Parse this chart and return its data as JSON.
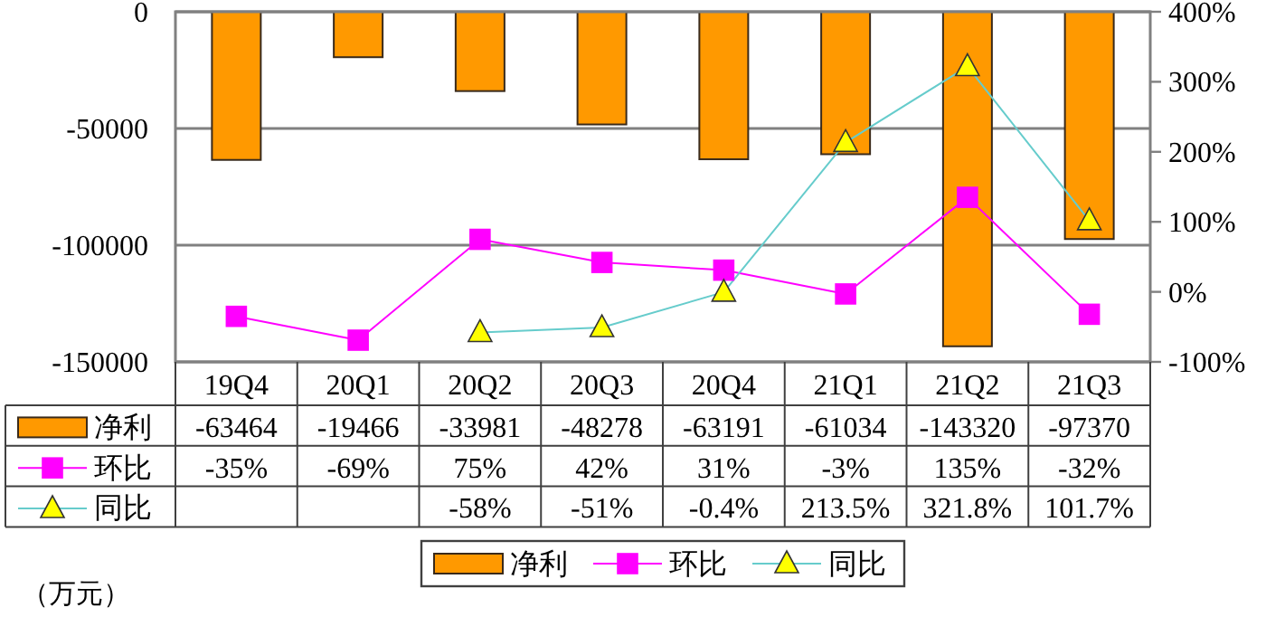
{
  "chart_data": {
    "type": "bar",
    "categories": [
      "19Q4",
      "20Q1",
      "20Q2",
      "20Q3",
      "20Q4",
      "21Q1",
      "21Q2",
      "21Q3"
    ],
    "series": [
      {
        "name": "净利",
        "color": "#ff9900",
        "values": [
          -63464,
          -19466,
          -33981,
          -48278,
          -63191,
          -61034,
          -143320,
          -97370
        ],
        "value_labels": [
          "-63464",
          "-19466",
          "-33981",
          "-48278",
          "-63191",
          "-61034",
          "-143320",
          "-97370"
        ]
      },
      {
        "name": "环比",
        "type": "line",
        "axis": "y2",
        "color": "#ff00ff",
        "marker": "square",
        "values": [
          -35,
          -69,
          75,
          42,
          31,
          -3,
          135,
          -32
        ],
        "value_labels": [
          "-35%",
          "-69%",
          "75%",
          "42%",
          "31%",
          "-3%",
          "135%",
          "-32%"
        ]
      },
      {
        "name": "同比",
        "type": "line",
        "axis": "y2",
        "color": "#66cccc",
        "marker": "triangle",
        "colors": [
          null,
          null,
          "#ffff00",
          "#ffff00",
          "#ffff00",
          "#ffff00",
          "#ffff00",
          "#ffff00"
        ],
        "values": [
          null,
          null,
          -58,
          -51,
          -0.4,
          213.5,
          321.8,
          101.7
        ],
        "value_labels": [
          null,
          null,
          "-58%",
          "-51%",
          "-0.4%",
          "213.5%",
          "321.8%",
          "101.7%"
        ]
      }
    ],
    "ylim": [
      -150000,
      0
    ],
    "yticks": [
      -150000,
      -100000,
      -50000,
      0
    ],
    "y2lim": [
      -100,
      400
    ],
    "y2ticks": [
      {
        "value": -100,
        "label": "-100%"
      },
      {
        "value": 0,
        "label": "0%"
      },
      {
        "value": 100,
        "label": "100%"
      },
      {
        "value": 200,
        "label": "200%"
      },
      {
        "value": 300,
        "label": "300%"
      },
      {
        "value": 400,
        "label": "400%"
      }
    ],
    "grid": "y",
    "legend": "bottom",
    "annotations": [
      "（万元）"
    ]
  }
}
